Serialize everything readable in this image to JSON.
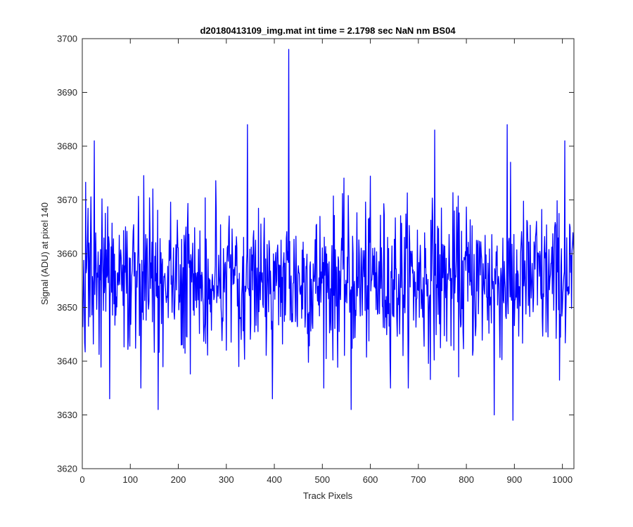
{
  "chart_data": {
    "type": "line",
    "title": "d20180413109_img.mat int time = 2.1798 sec  NaN nm BS04",
    "xlabel": "Track Pixels",
    "ylabel": "Signal (ADU) at pixel 140",
    "xlim": [
      0,
      1024
    ],
    "ylim": [
      3620,
      3700
    ],
    "xticks": [
      0,
      100,
      200,
      300,
      400,
      500,
      600,
      700,
      800,
      900,
      1000
    ],
    "yticks": [
      3620,
      3630,
      3640,
      3650,
      3660,
      3670,
      3680,
      3690,
      3700
    ],
    "grid": false,
    "series": [
      {
        "color": "#0000ff",
        "x_start": 1,
        "x_step": 1,
        "baseline": 3655,
        "noise_std": 7,
        "n_points": 1024,
        "peaks": [
          {
            "x": 25,
            "y": 3681
          },
          {
            "x": 57,
            "y": 3633
          },
          {
            "x": 158,
            "y": 3631
          },
          {
            "x": 344,
            "y": 3684
          },
          {
            "x": 396,
            "y": 3633
          },
          {
            "x": 430,
            "y": 3698
          },
          {
            "x": 560,
            "y": 3631
          },
          {
            "x": 734,
            "y": 3683
          },
          {
            "x": 858,
            "y": 3630
          },
          {
            "x": 885,
            "y": 3684
          },
          {
            "x": 897,
            "y": 3629
          },
          {
            "x": 1005,
            "y": 3681
          }
        ]
      }
    ]
  }
}
